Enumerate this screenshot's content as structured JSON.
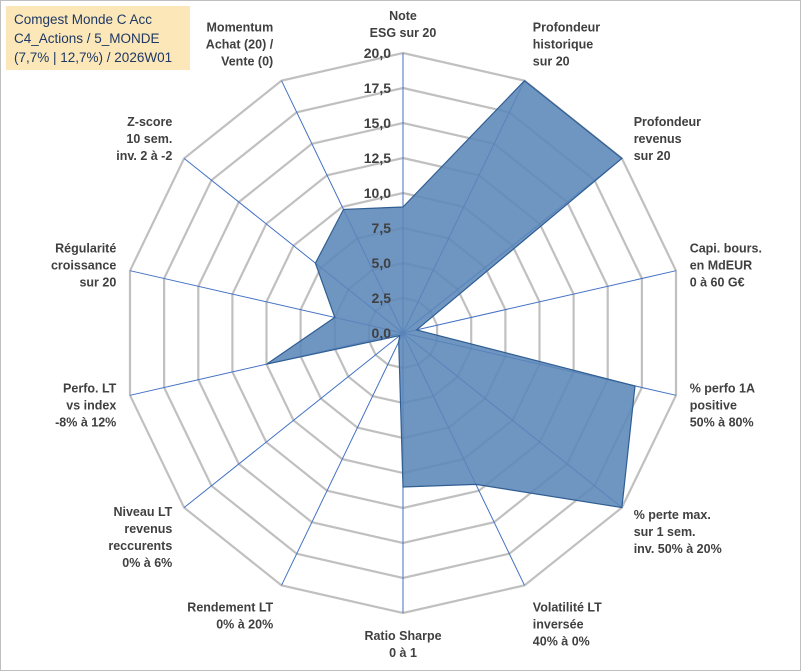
{
  "title_box": {
    "line1": "Comgest Monde C Acc",
    "line2": "C4_Actions / 5_MONDE",
    "line3": "(7,7% | 12,7%) / 2026W01"
  },
  "colors": {
    "fill": "#5b86b8",
    "stroke": "#2f5e93",
    "grid": "#c0c0c0",
    "spoke": "#4472c4",
    "title_bg": "#fbe7b8",
    "title_text": "#1f3864"
  },
  "chart_data": {
    "type": "radar",
    "rmin": 0,
    "rmax": 20,
    "tick_step": 2.5,
    "tick_labels": [
      "0,0",
      "2,5",
      "5,0",
      "7,5",
      "10,0",
      "12,5",
      "15,0",
      "17,5",
      "20,0"
    ],
    "categories": [
      [
        "Note",
        "ESG sur 20"
      ],
      [
        "Profondeur",
        "historique",
        "sur 20"
      ],
      [
        "Profondeur",
        "revenus",
        "sur 20"
      ],
      [
        "Capi. bours.",
        "en MdEUR",
        "0 à 60 G€"
      ],
      [
        "% perfo 1A",
        "positive",
        "50% à 80%"
      ],
      [
        "% perte max.",
        "sur 1 sem.",
        "inv. 50% à 20%"
      ],
      [
        "Volatilité LT",
        "inversée",
        "40% à 0%"
      ],
      [
        "Ratio Sharpe",
        "0 à 1"
      ],
      [
        "Rendement LT",
        "0% à 20%"
      ],
      [
        "Niveau LT",
        "revenus",
        "reccurents",
        "0% à 6%"
      ],
      [
        "Perfo. LT",
        "vs index",
        "-8% à 12%"
      ],
      [
        "Régularité",
        "croissance",
        "sur 20"
      ],
      [
        "Z-score",
        "10 sem.",
        "inv. 2 à -2"
      ],
      [
        "Momentum",
        "Achat (20) /",
        "Vente (0)"
      ]
    ],
    "series": [
      {
        "values": [
          9.0,
          20.0,
          20.0,
          1.0,
          17.0,
          20.0,
          12.0,
          11.0,
          0.7,
          0.3,
          10.0,
          5.0,
          8.0,
          9.8
        ]
      }
    ]
  }
}
